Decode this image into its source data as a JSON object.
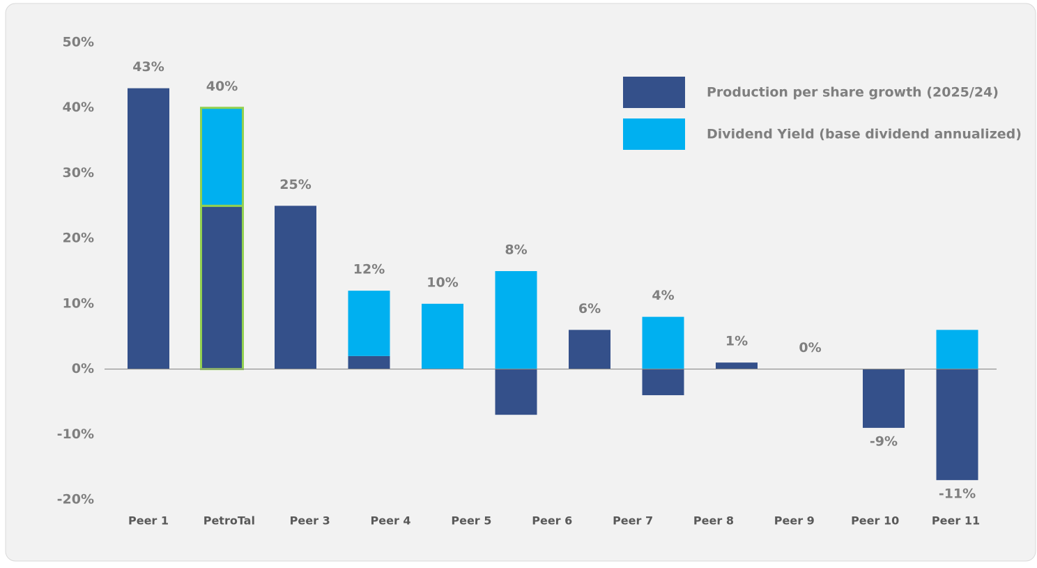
{
  "chart_data": {
    "type": "stacked_bar",
    "categories": [
      "Peer 1",
      "PetroTal",
      "Peer 3",
      "Peer 4",
      "Peer 5",
      "Peer 6",
      null,
      "Peer 7",
      "Peer 8",
      "Peer 9",
      "Peer 10",
      "Peer 11"
    ],
    "series": [
      {
        "name": "Production per share growth (2025/24)",
        "color": "#34508a",
        "values": [
          43,
          25,
          25,
          2,
          0,
          -7,
          6,
          -4,
          1,
          0,
          -9,
          -17
        ]
      },
      {
        "name": "Dividend Yield (base dividend annualized)",
        "color": "#00b0f0",
        "values": [
          0,
          15,
          0,
          10,
          10,
          15,
          0,
          8,
          0,
          0,
          0,
          6
        ]
      }
    ],
    "totals": [
      43,
      40,
      25,
      12,
      10,
      8,
      6,
      4,
      1,
      0,
      -9,
      -11
    ],
    "total_labels": [
      "43%",
      "40%",
      "25%",
      "12%",
      "10%",
      "8%",
      "6%",
      "4%",
      "1%",
      "0%",
      "-9%",
      "-11%"
    ],
    "highlight": {
      "category": 1,
      "color": "#92d050"
    },
    "ylim": [
      -20,
      50
    ],
    "yticks": [
      {
        "value": -20,
        "label": "-20%"
      },
      {
        "value": -10,
        "label": "-10%"
      },
      {
        "value": 0,
        "label": "0%"
      },
      {
        "value": 10,
        "label": "10%"
      },
      {
        "value": 20,
        "label": "20%"
      },
      {
        "value": 30,
        "label": "30%"
      },
      {
        "value": 40,
        "label": "40%"
      },
      {
        "value": 50,
        "label": "50%"
      }
    ],
    "legend": "upper right"
  }
}
